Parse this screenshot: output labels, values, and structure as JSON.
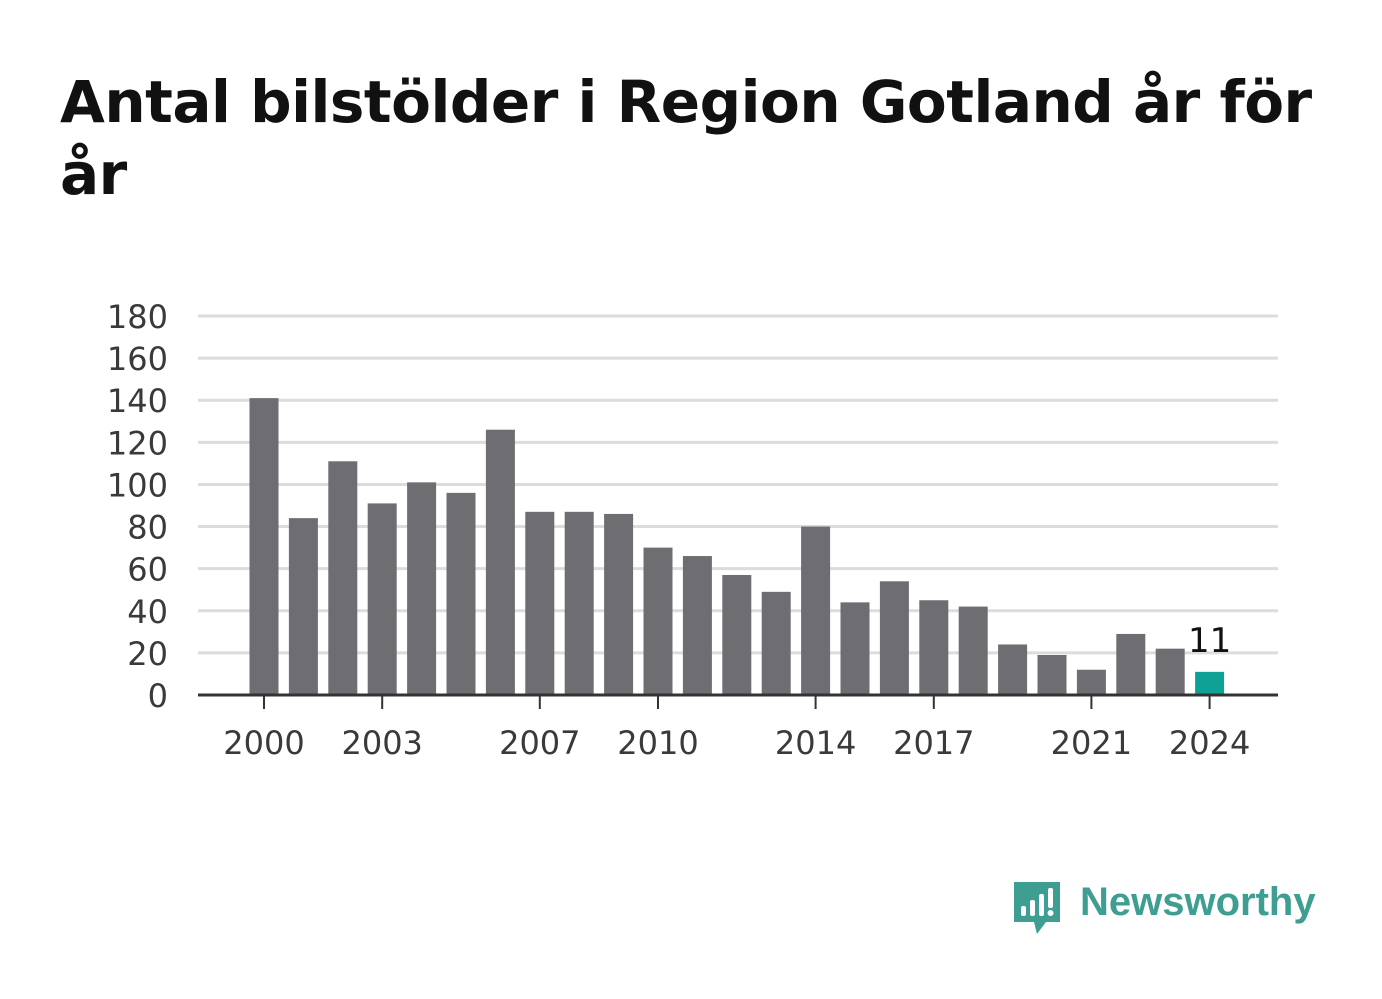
{
  "chart_data": {
    "type": "bar",
    "title": "Antal bilstölder i Region Gotland år för år",
    "xlabel": "",
    "ylabel": "",
    "ylim": [
      0,
      180
    ],
    "yticks": [
      0,
      20,
      40,
      60,
      80,
      100,
      120,
      140,
      160,
      180
    ],
    "xticks": [
      "2000",
      "2003",
      "2007",
      "2010",
      "2014",
      "2017",
      "2021",
      "2024"
    ],
    "categories": [
      "2000",
      "2001",
      "2002",
      "2003",
      "2004",
      "2005",
      "2006",
      "2007",
      "2008",
      "2009",
      "2010",
      "2011",
      "2012",
      "2013",
      "2014",
      "2015",
      "2016",
      "2017",
      "2018",
      "2019",
      "2020",
      "2021",
      "2022",
      "2023",
      "2024"
    ],
    "values": [
      141,
      84,
      111,
      91,
      101,
      96,
      126,
      87,
      87,
      86,
      70,
      66,
      57,
      49,
      80,
      44,
      54,
      45,
      42,
      24,
      19,
      12,
      29,
      22,
      11
    ],
    "highlight": {
      "category": "2024",
      "label": "11"
    },
    "grid": true,
    "colors": {
      "bar": "#6e6d72",
      "highlight": "#0fa195",
      "grid": "#dcdcdc",
      "axis": "#333333"
    }
  },
  "brand": {
    "name": "Newsworthy",
    "icon": "newsworthy-logo-icon",
    "color": "#3e9e91"
  }
}
